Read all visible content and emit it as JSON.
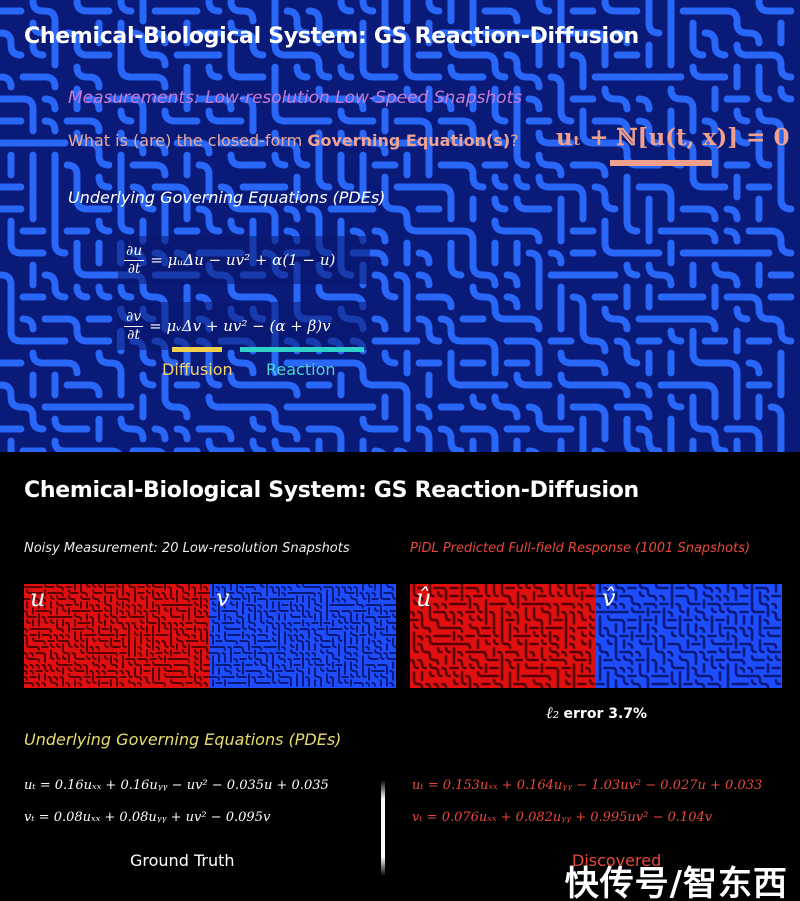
{
  "top": {
    "title": "Chemical-Biological System: GS Reaction-Diffusion",
    "measurements": "Measurements: Low-resolution Low-Speed Snapshots",
    "question_prefix": "What is (are) the closed-form ",
    "question_bold": "Governing Equation(s)",
    "question_suffix": "?",
    "big_equation": "uₜ + ℕ[u(t, x)] = 0",
    "underlying": "Underlying Governing Equations (PDEs)",
    "eq_u_lhs_num": "∂u",
    "eq_u_lhs_den": "∂t",
    "eq_u_rhs": "= μᵤΔu − uv² + α(1 − u)",
    "eq_v_lhs_num": "∂v",
    "eq_v_lhs_den": "∂t",
    "eq_v_rhs": "= μᵥΔv + uv² − (α + β)v",
    "diffusion_label": "Diffusion",
    "reaction_label": "Reaction",
    "colors": {
      "pattern_bg": "#0a1a78",
      "pattern_stripe": "#2a6cff",
      "diffusion": "#f0cf4a",
      "reaction": "#2fd0c8"
    }
  },
  "bottom": {
    "title": "Chemical-Biological System: GS Reaction-Diffusion",
    "noisy_caption": "Noisy Measurement: 20 Low-resolution Snapshots",
    "pidl_caption": "PiDL Predicted Full-field Response (1001 Snapshots)",
    "fields": [
      {
        "label": "u",
        "color": "red"
      },
      {
        "label": "v",
        "color": "blue"
      },
      {
        "label": "û",
        "color": "red"
      },
      {
        "label": "v̂",
        "color": "blue"
      }
    ],
    "error_symbol": "ℓ₂",
    "error_text": "error 3.7%",
    "underlying": "Underlying Governing Equations (PDEs)",
    "gt_eq1": "uₜ = 0.16uₓₓ + 0.16uᵧᵧ − uv² − 0.035u + 0.035",
    "gt_eq2": "vₜ = 0.08uₓₓ + 0.08uᵧᵧ + uv² − 0.095v",
    "disc_eq1": "uₜ = 0.153uₓₓ + 0.164uᵧᵧ − 1.03uv² − 0.027u + 0.033",
    "disc_eq2": "vₜ = 0.076uₓₓ + 0.082uᵧᵧ + 0.995uv² − 0.104v",
    "ground_truth": "Ground Truth",
    "discovered": "Discovered",
    "colors": {
      "red_field": "#e01010",
      "blue_field": "#1e4cff",
      "discovered_text": "#e8493c",
      "underlying_text": "#e6dd6a"
    }
  },
  "watermark": "快传号/智东西"
}
